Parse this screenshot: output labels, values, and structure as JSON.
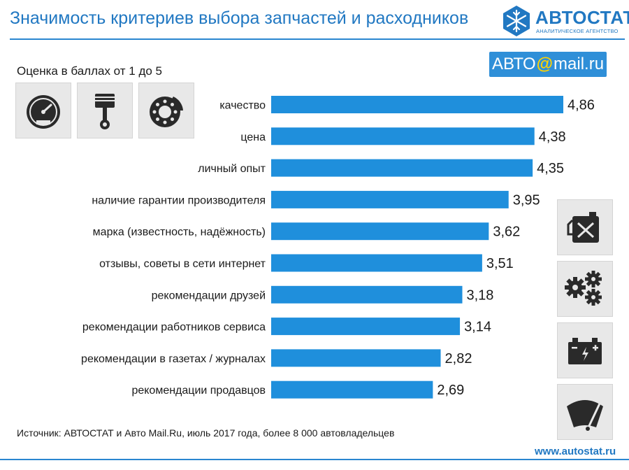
{
  "header": {
    "title": "Значимость критериев выбора запчастей и расходников",
    "logo_text": "АВТОСТАТ",
    "logo_subtext": "АНАЛИТИЧЕСКОЕ АГЕНТСТВО"
  },
  "partner_badge": {
    "prefix": "АВТО",
    "at": "@",
    "suffix": "mail.ru"
  },
  "subtitle": "Оценка в баллах от 1 до 5",
  "icons": {
    "top_left": [
      "speedometer-icon",
      "piston-icon",
      "brake-disc-icon"
    ],
    "right": [
      "canister-icon",
      "gears-icon",
      "battery-icon",
      "wiper-icon"
    ]
  },
  "colors": {
    "bar": "#1f8fdc",
    "accent": "#2178c2",
    "partner_bg": "#2f8fd8",
    "partner_at": "#ffd200"
  },
  "chart_data": {
    "type": "bar",
    "orientation": "horizontal",
    "categories": [
      "качество",
      "цена",
      "личный опыт",
      "наличие гарантии производителя",
      "марка (известность, надёжность)",
      "отзывы, советы в сети интернет",
      "рекомендации друзей",
      "рекомендации работников сервиса",
      "рекомендации в газетах / журналах",
      "рекомендации продавцов"
    ],
    "values": [
      4.86,
      4.38,
      4.35,
      3.95,
      3.62,
      3.51,
      3.18,
      3.14,
      2.82,
      2.69
    ],
    "value_labels": [
      "4,86",
      "4,38",
      "4,35",
      "3,95",
      "3,62",
      "3,51",
      "3,18",
      "3,14",
      "2,82",
      "2,69"
    ],
    "xlim": [
      0,
      4.86
    ],
    "grid": false,
    "legend": "none"
  },
  "footer": {
    "source": "Источник: АВТОСТАТ и Авто Mail.Ru, июль 2017 года, более 8 000 автовладельцев",
    "website": "www.autostat.ru"
  }
}
